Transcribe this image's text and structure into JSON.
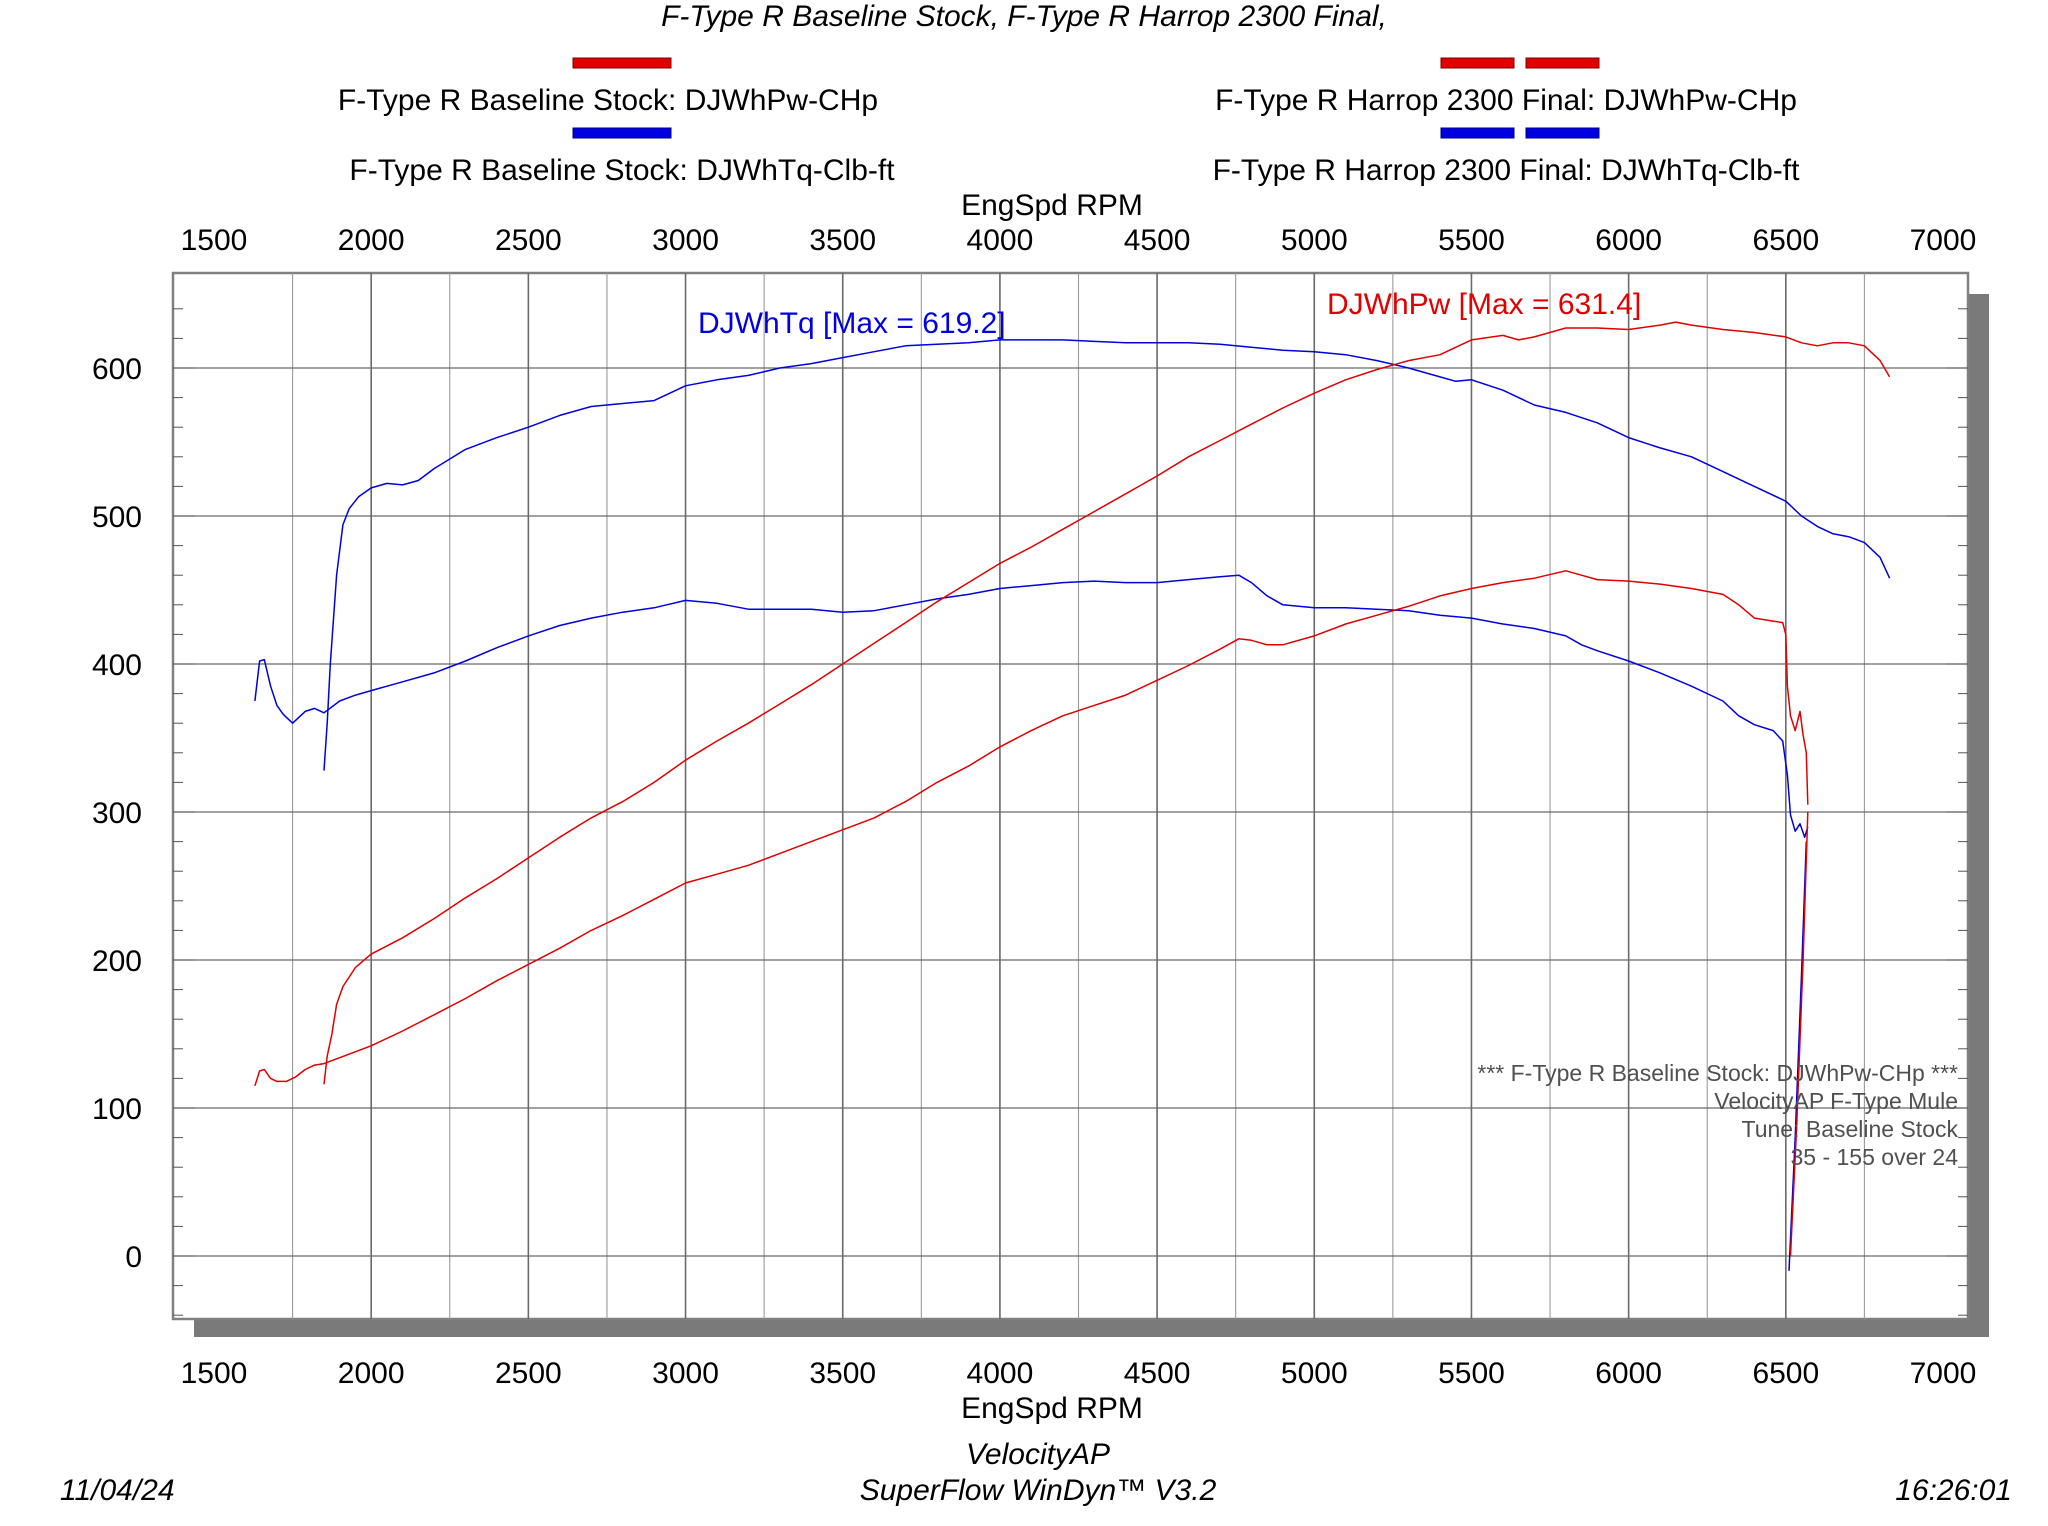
{
  "header": {
    "title": "F-Type R Baseline Stock, F-Type R Harrop 2300 Final,",
    "legend": {
      "left_hp": "F-Type R Baseline Stock: DJWhPw-CHp",
      "left_tq": "F-Type R Baseline Stock: DJWhTq-Clb-ft",
      "right_hp": "F-Type R Harrop 2300 Final: DJWhPw-CHp",
      "right_tq": "F-Type R Harrop 2300 Final: DJWhTq-Clb-ft"
    }
  },
  "footer": {
    "date": "11/04/24",
    "company": "VelocityAP",
    "software": "SuperFlow WinDyn™ V3.2",
    "time": "16:26:01"
  },
  "colors": {
    "hp": "#e00000",
    "tq": "#0000e0",
    "frame": "#808080",
    "shadow": "#7a7a7a"
  },
  "chart_data": {
    "type": "line",
    "xlabel": "EngSpd RPM",
    "ylabel": "",
    "xlim": [
      1500,
      7000
    ],
    "ylim": [
      -40,
      660
    ],
    "x_ticks": [
      1500,
      2000,
      2500,
      3000,
      3500,
      4000,
      4500,
      5000,
      5500,
      6000,
      6500,
      7000
    ],
    "y_ticks": [
      0,
      100,
      200,
      300,
      400,
      500,
      600
    ],
    "grid": true,
    "annotations": {
      "tq_max": "DJWhTq [Max = 619.2]",
      "hp_max": "DJWhPw [Max = 631.4]"
    },
    "info_box": [
      "*** F-Type R Baseline Stock: DJWhPw-CHp     ***",
      "VelocityAP F-Type Mule",
      "Tune: Baseline Stock",
      "35 - 155 over 24"
    ],
    "series": [
      {
        "name": "F-Type R Baseline Stock: DJWhTq-Clb-ft",
        "color": "#0000e0",
        "points": [
          [
            1630,
            375
          ],
          [
            1645,
            402
          ],
          [
            1660,
            403
          ],
          [
            1680,
            385
          ],
          [
            1700,
            372
          ],
          [
            1720,
            366
          ],
          [
            1750,
            360
          ],
          [
            1790,
            368
          ],
          [
            1820,
            370
          ],
          [
            1850,
            367
          ],
          [
            1900,
            375
          ],
          [
            1950,
            379
          ],
          [
            2000,
            382
          ],
          [
            2100,
            388
          ],
          [
            2200,
            394
          ],
          [
            2300,
            402
          ],
          [
            2400,
            411
          ],
          [
            2500,
            419
          ],
          [
            2600,
            426
          ],
          [
            2700,
            431
          ],
          [
            2800,
            435
          ],
          [
            2900,
            438
          ],
          [
            3000,
            443
          ],
          [
            3100,
            441
          ],
          [
            3200,
            437
          ],
          [
            3300,
            437
          ],
          [
            3400,
            437
          ],
          [
            3500,
            435
          ],
          [
            3600,
            436
          ],
          [
            3700,
            440
          ],
          [
            3800,
            444
          ],
          [
            3900,
            447
          ],
          [
            4000,
            451
          ],
          [
            4100,
            453
          ],
          [
            4200,
            455
          ],
          [
            4300,
            456
          ],
          [
            4400,
            455
          ],
          [
            4500,
            455
          ],
          [
            4600,
            457
          ],
          [
            4700,
            459
          ],
          [
            4760,
            460
          ],
          [
            4800,
            455
          ],
          [
            4850,
            446
          ],
          [
            4900,
            440
          ],
          [
            5000,
            438
          ],
          [
            5100,
            438
          ],
          [
            5200,
            437
          ],
          [
            5300,
            436
          ],
          [
            5400,
            433
          ],
          [
            5500,
            431
          ],
          [
            5600,
            427
          ],
          [
            5700,
            424
          ],
          [
            5800,
            419
          ],
          [
            5850,
            413
          ],
          [
            5900,
            409
          ],
          [
            6000,
            402
          ],
          [
            6100,
            394
          ],
          [
            6200,
            385
          ],
          [
            6300,
            375
          ],
          [
            6350,
            365
          ],
          [
            6400,
            359
          ],
          [
            6460,
            355
          ],
          [
            6490,
            348
          ],
          [
            6505,
            325
          ],
          [
            6515,
            298
          ],
          [
            6530,
            287
          ],
          [
            6545,
            292
          ],
          [
            6560,
            283
          ],
          [
            6570,
            290
          ]
        ]
      },
      {
        "name": "F-Type R Harrop 2300 Final: DJWhTq-Clb-ft",
        "color": "#0000e0",
        "points": [
          [
            1850,
            328
          ],
          [
            1860,
            360
          ],
          [
            1870,
            400
          ],
          [
            1890,
            460
          ],
          [
            1910,
            494
          ],
          [
            1930,
            505
          ],
          [
            1960,
            513
          ],
          [
            2000,
            519
          ],
          [
            2050,
            522
          ],
          [
            2100,
            521
          ],
          [
            2150,
            524
          ],
          [
            2200,
            532
          ],
          [
            2300,
            545
          ],
          [
            2400,
            553
          ],
          [
            2500,
            560
          ],
          [
            2600,
            568
          ],
          [
            2700,
            574
          ],
          [
            2800,
            576
          ],
          [
            2900,
            578
          ],
          [
            3000,
            588
          ],
          [
            3100,
            592
          ],
          [
            3200,
            595
          ],
          [
            3300,
            600
          ],
          [
            3400,
            603
          ],
          [
            3500,
            607
          ],
          [
            3600,
            611
          ],
          [
            3700,
            615
          ],
          [
            3800,
            616
          ],
          [
            3900,
            617
          ],
          [
            4000,
            619
          ],
          [
            4100,
            619
          ],
          [
            4200,
            619
          ],
          [
            4300,
            618
          ],
          [
            4400,
            617
          ],
          [
            4500,
            617
          ],
          [
            4600,
            617
          ],
          [
            4700,
            616
          ],
          [
            4800,
            614
          ],
          [
            4900,
            612
          ],
          [
            5000,
            611
          ],
          [
            5100,
            609
          ],
          [
            5200,
            605
          ],
          [
            5300,
            600
          ],
          [
            5400,
            594
          ],
          [
            5450,
            591
          ],
          [
            5500,
            592
          ],
          [
            5600,
            585
          ],
          [
            5650,
            580
          ],
          [
            5700,
            575
          ],
          [
            5800,
            570
          ],
          [
            5900,
            563
          ],
          [
            6000,
            553
          ],
          [
            6100,
            546
          ],
          [
            6200,
            540
          ],
          [
            6300,
            530
          ],
          [
            6400,
            520
          ],
          [
            6500,
            510
          ],
          [
            6550,
            500
          ],
          [
            6600,
            493
          ],
          [
            6650,
            488
          ],
          [
            6700,
            486
          ],
          [
            6750,
            482
          ],
          [
            6800,
            472
          ],
          [
            6830,
            458
          ]
        ]
      },
      {
        "name": "F-Type R Baseline Stock: DJWhPw-CHp",
        "color": "#e00000",
        "points": [
          [
            1630,
            115
          ],
          [
            1645,
            125
          ],
          [
            1660,
            126
          ],
          [
            1680,
            120
          ],
          [
            1700,
            118
          ],
          [
            1730,
            118
          ],
          [
            1760,
            121
          ],
          [
            1790,
            126
          ],
          [
            1820,
            129
          ],
          [
            1850,
            130
          ],
          [
            1900,
            134
          ],
          [
            2000,
            142
          ],
          [
            2100,
            152
          ],
          [
            2200,
            163
          ],
          [
            2300,
            174
          ],
          [
            2400,
            186
          ],
          [
            2500,
            197
          ],
          [
            2600,
            208
          ],
          [
            2700,
            220
          ],
          [
            2800,
            230
          ],
          [
            2900,
            241
          ],
          [
            3000,
            252
          ],
          [
            3100,
            258
          ],
          [
            3200,
            264
          ],
          [
            3300,
            272
          ],
          [
            3400,
            280
          ],
          [
            3500,
            288
          ],
          [
            3600,
            296
          ],
          [
            3700,
            307
          ],
          [
            3800,
            320
          ],
          [
            3900,
            331
          ],
          [
            4000,
            344
          ],
          [
            4100,
            355
          ],
          [
            4200,
            365
          ],
          [
            4300,
            372
          ],
          [
            4400,
            379
          ],
          [
            4500,
            389
          ],
          [
            4600,
            399
          ],
          [
            4700,
            410
          ],
          [
            4760,
            417
          ],
          [
            4800,
            416
          ],
          [
            4850,
            413
          ],
          [
            4900,
            413
          ],
          [
            5000,
            419
          ],
          [
            5100,
            427
          ],
          [
            5200,
            433
          ],
          [
            5300,
            439
          ],
          [
            5400,
            446
          ],
          [
            5500,
            451
          ],
          [
            5600,
            455
          ],
          [
            5700,
            458
          ],
          [
            5800,
            463
          ],
          [
            5850,
            460
          ],
          [
            5900,
            457
          ],
          [
            6000,
            456
          ],
          [
            6100,
            454
          ],
          [
            6200,
            451
          ],
          [
            6300,
            447
          ],
          [
            6350,
            440
          ],
          [
            6400,
            431
          ],
          [
            6460,
            429
          ],
          [
            6490,
            428
          ],
          [
            6500,
            420
          ],
          [
            6505,
            385
          ],
          [
            6515,
            365
          ],
          [
            6530,
            355
          ],
          [
            6545,
            368
          ],
          [
            6555,
            352
          ],
          [
            6565,
            340
          ],
          [
            6570,
            305
          ]
        ]
      },
      {
        "name": "F-Type R Harrop 2300 Final: DJWhPw-CHp",
        "color": "#e00000",
        "points": [
          [
            1850,
            116
          ],
          [
            1860,
            135
          ],
          [
            1875,
            150
          ],
          [
            1890,
            170
          ],
          [
            1910,
            182
          ],
          [
            1950,
            195
          ],
          [
            2000,
            204
          ],
          [
            2100,
            215
          ],
          [
            2200,
            228
          ],
          [
            2300,
            242
          ],
          [
            2400,
            255
          ],
          [
            2500,
            269
          ],
          [
            2600,
            283
          ],
          [
            2700,
            296
          ],
          [
            2800,
            307
          ],
          [
            2900,
            320
          ],
          [
            3000,
            335
          ],
          [
            3100,
            348
          ],
          [
            3200,
            360
          ],
          [
            3300,
            373
          ],
          [
            3400,
            386
          ],
          [
            3500,
            400
          ],
          [
            3600,
            414
          ],
          [
            3700,
            428
          ],
          [
            3800,
            442
          ],
          [
            3900,
            455
          ],
          [
            4000,
            468
          ],
          [
            4100,
            479
          ],
          [
            4200,
            491
          ],
          [
            4300,
            503
          ],
          [
            4400,
            515
          ],
          [
            4500,
            527
          ],
          [
            4600,
            540
          ],
          [
            4700,
            551
          ],
          [
            4800,
            562
          ],
          [
            4900,
            573
          ],
          [
            5000,
            583
          ],
          [
            5100,
            592
          ],
          [
            5200,
            599
          ],
          [
            5300,
            605
          ],
          [
            5400,
            609
          ],
          [
            5450,
            614
          ],
          [
            5500,
            619
          ],
          [
            5600,
            622
          ],
          [
            5650,
            619
          ],
          [
            5700,
            621
          ],
          [
            5800,
            627
          ],
          [
            5900,
            627
          ],
          [
            6000,
            626
          ],
          [
            6100,
            629
          ],
          [
            6150,
            631
          ],
          [
            6200,
            629
          ],
          [
            6300,
            626
          ],
          [
            6400,
            624
          ],
          [
            6500,
            621
          ],
          [
            6550,
            617
          ],
          [
            6600,
            615
          ],
          [
            6650,
            617
          ],
          [
            6700,
            617
          ],
          [
            6750,
            615
          ],
          [
            6800,
            605
          ],
          [
            6830,
            594
          ]
        ]
      },
      {
        "name": "",
        "color": "#0000e0",
        "points": [
          [
            6510,
            -10
          ],
          [
            6530,
            80
          ],
          [
            6550,
            190
          ],
          [
            6565,
            280
          ]
        ]
      },
      {
        "name": "",
        "color": "#e00000",
        "points": [
          [
            6515,
            0
          ],
          [
            6535,
            90
          ],
          [
            6555,
            200
          ],
          [
            6570,
            300
          ]
        ]
      }
    ]
  }
}
